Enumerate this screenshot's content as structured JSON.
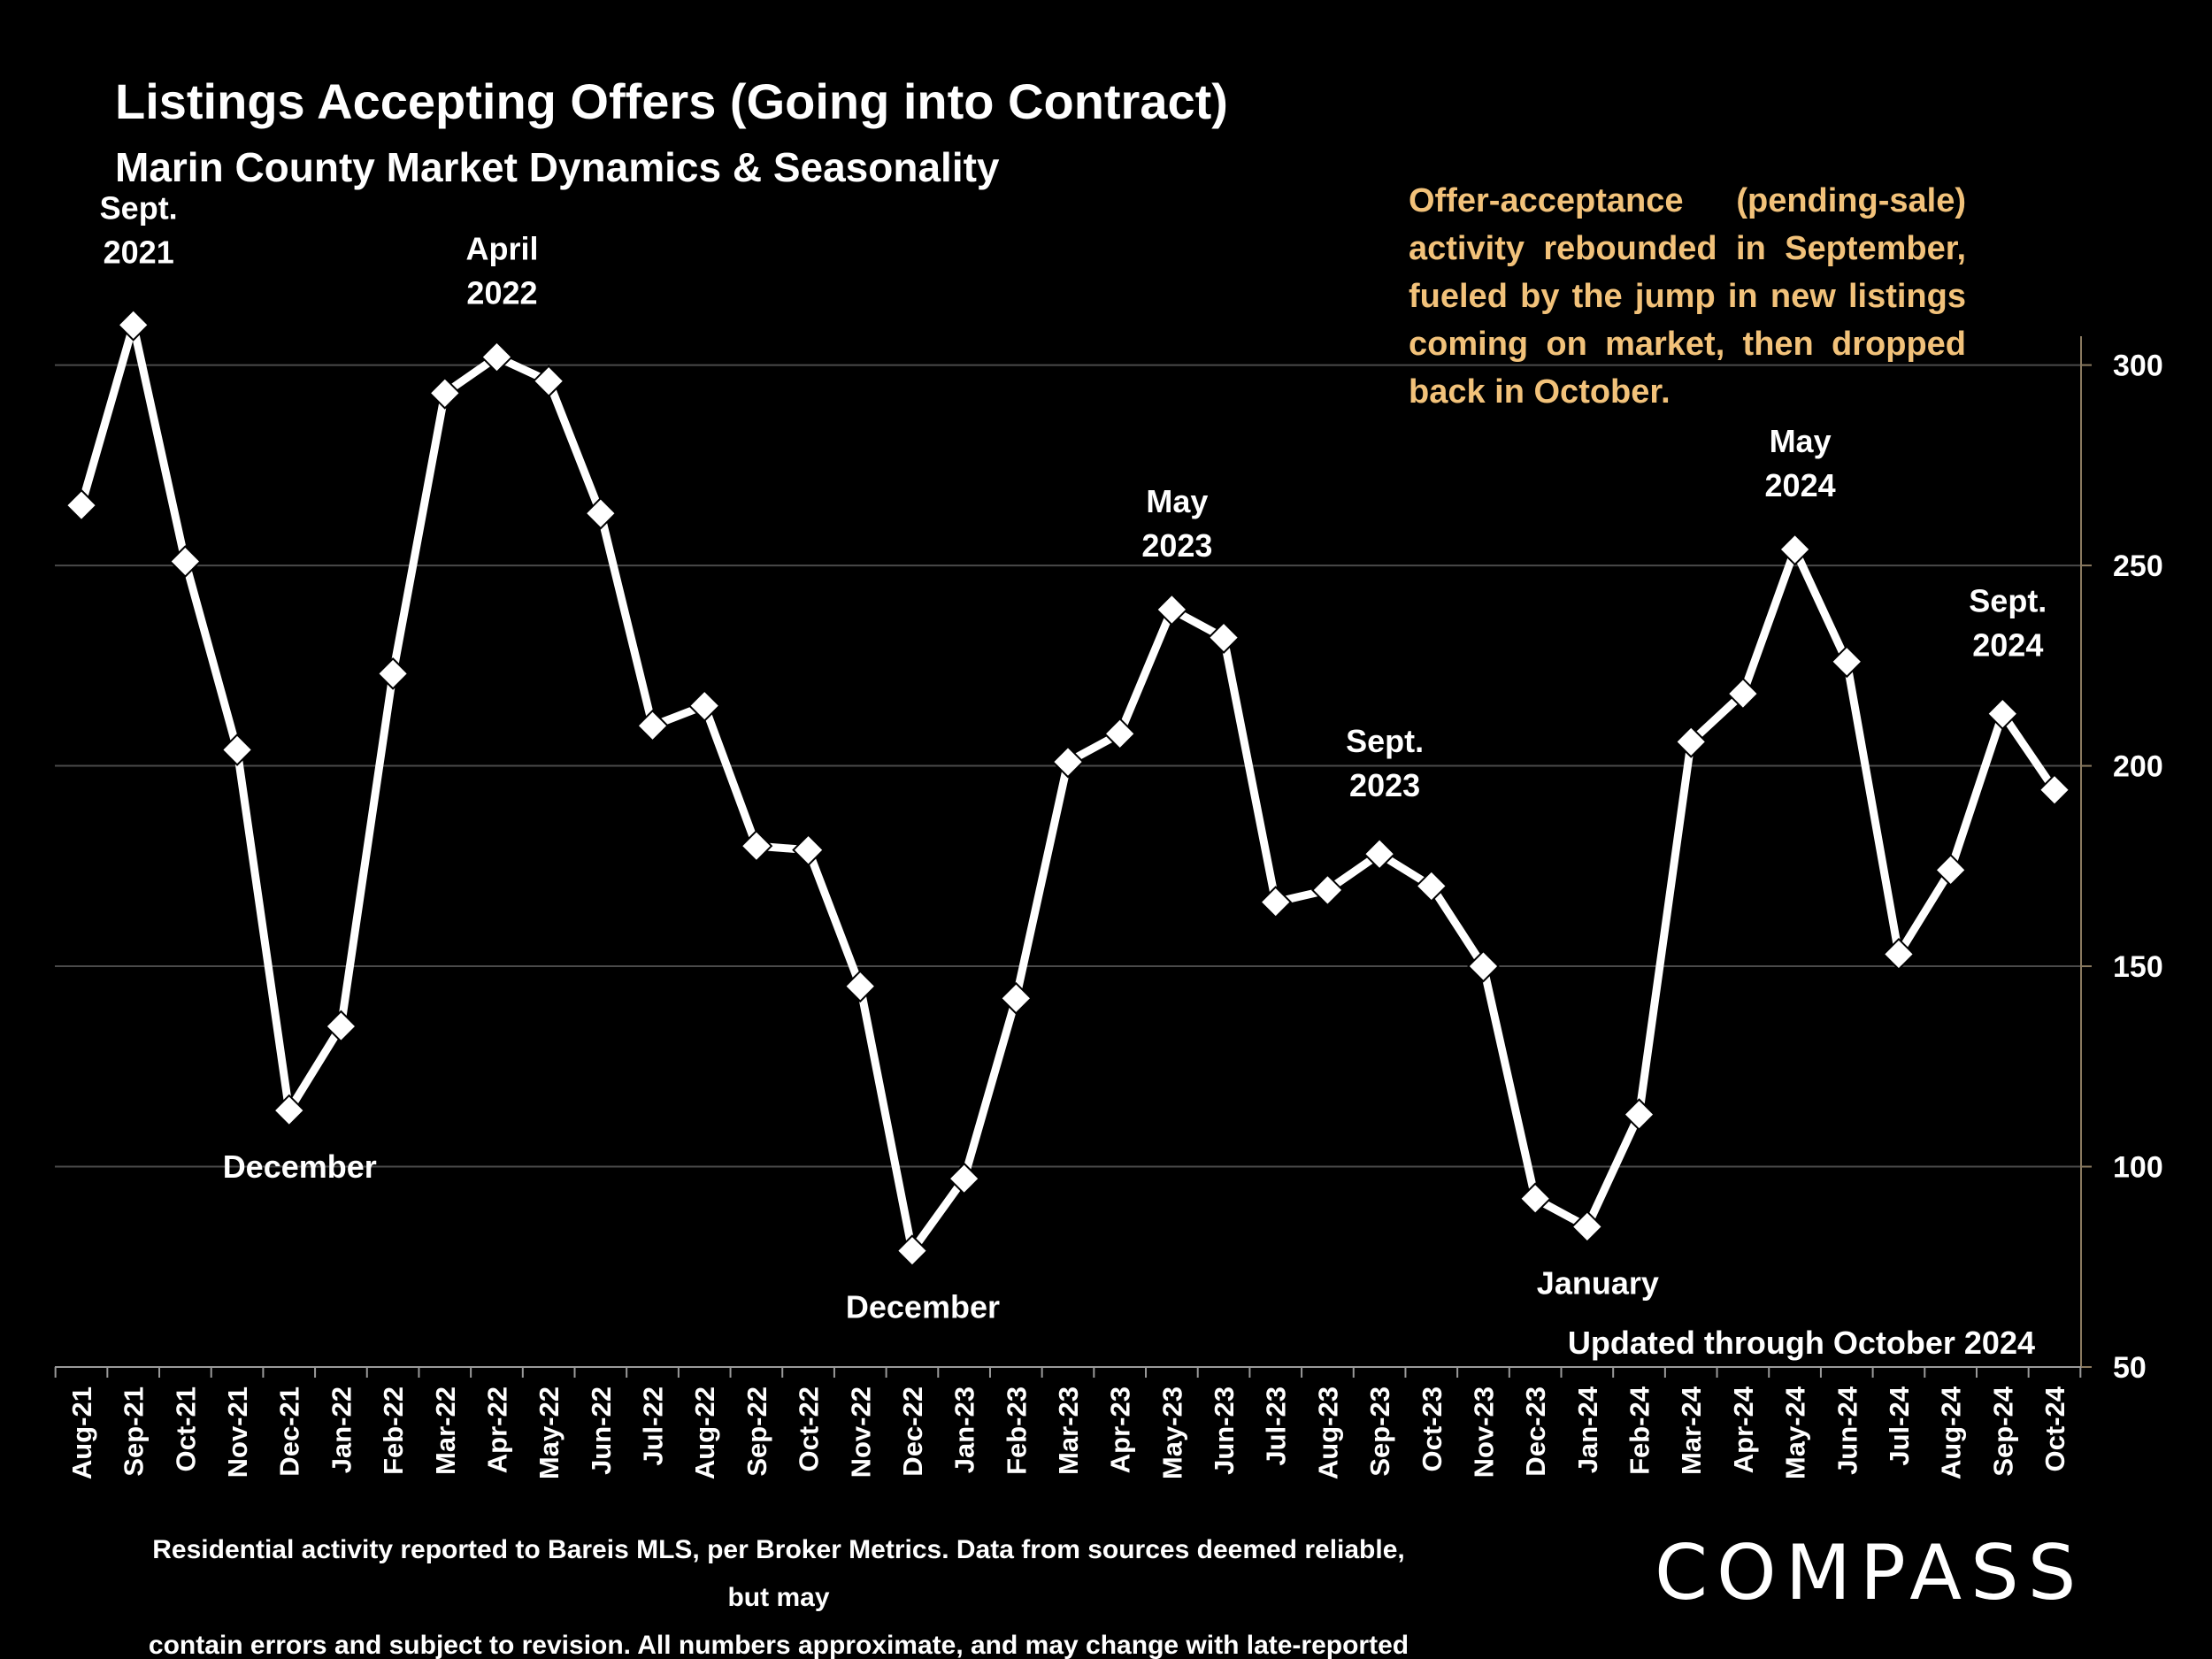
{
  "title": "Listings Accepting Offers (Going into Contract)",
  "subtitle": "Marin County Market Dynamics & Seasonality",
  "annotation": "Offer-acceptance (pending-sale) activity rebounded in September, fueled by the jump in new listings coming on market, then dropped back in October.",
  "updated_note": "Updated through October 2024",
  "footnote_line1": "Residential activity reported to Bareis MLS, per Broker Metrics. Data from sources deemed reliable, but may",
  "footnote_line2": "contain errors and subject to revision. All numbers approximate, and may change with late-reported activity.",
  "logo_text": "COMPASS",
  "colors": {
    "background": "#000000",
    "line": "#ffffff",
    "annotation": "#f2c27a",
    "grid": "#4a4a4a"
  },
  "chart_data": {
    "type": "line",
    "title": "Listings Accepting Offers (Going into Contract)",
    "subtitle": "Marin County Market Dynamics & Seasonality",
    "categories": [
      "Aug-21",
      "Sep-21",
      "Oct-21",
      "Nov-21",
      "Dec-21",
      "Jan-22",
      "Feb-22",
      "Mar-22",
      "Apr-22",
      "May-22",
      "Jun-22",
      "Jul-22",
      "Aug-22",
      "Sep-22",
      "Oct-22",
      "Nov-22",
      "Dec-22",
      "Jan-23",
      "Feb-23",
      "Mar-23",
      "Apr-23",
      "May-23",
      "Jun-23",
      "Jul-23",
      "Aug-23",
      "Sep-23",
      "Oct-23",
      "Nov-23",
      "Dec-23",
      "Jan-24",
      "Feb-24",
      "Mar-24",
      "Apr-24",
      "May-24",
      "Jun-24",
      "Jul-24",
      "Aug-24",
      "Sep-24",
      "Oct-24"
    ],
    "values": [
      265,
      310,
      251,
      204,
      114,
      135,
      223,
      293,
      302,
      296,
      263,
      210,
      215,
      180,
      179,
      145,
      79,
      97,
      142,
      201,
      208,
      239,
      232,
      166,
      169,
      178,
      170,
      150,
      92,
      85,
      113,
      206,
      218,
      254,
      226,
      153,
      174,
      213,
      194
    ],
    "ylim": [
      50,
      320
    ],
    "yticks": [
      50,
      100,
      150,
      200,
      250,
      300
    ],
    "y_axis_position": "right",
    "grid": true,
    "legend": "none",
    "marker": "diamond",
    "annotations": [
      {
        "label": "Sept.\n2021",
        "index": 1
      },
      {
        "label": "April\n2022",
        "index": 8
      },
      {
        "label": "December",
        "index": 4
      },
      {
        "label": "December",
        "index": 16
      },
      {
        "label": "May\n2023",
        "index": 21
      },
      {
        "label": "Sept.\n2023",
        "index": 25
      },
      {
        "label": "January",
        "index": 29
      },
      {
        "label": "May\n2024",
        "index": 33
      },
      {
        "label": "Sept.\n2024",
        "index": 37
      }
    ]
  }
}
